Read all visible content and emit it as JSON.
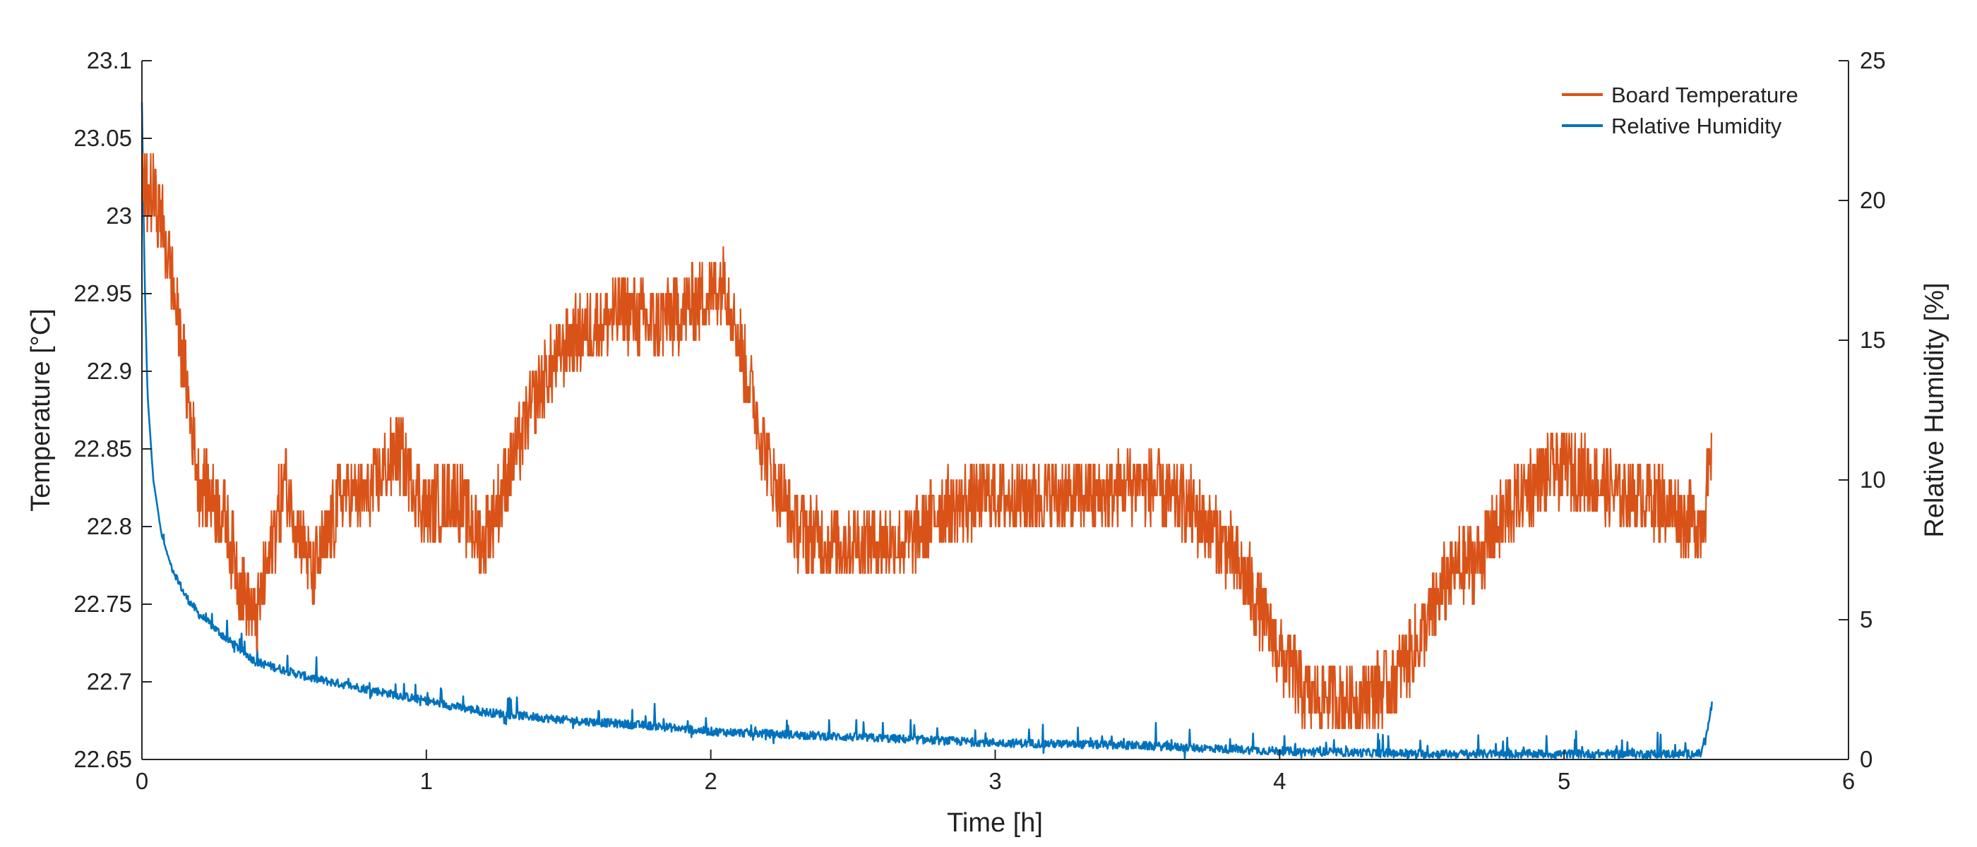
{
  "chart_data": {
    "type": "line",
    "title": "",
    "xlabel": "Time [h]",
    "ylabel_left": "Temperature [°C]",
    "ylabel_right": "Relative Humidity [%]",
    "xlim": [
      0,
      6
    ],
    "ylim_left": [
      22.65,
      23.1
    ],
    "ylim_right": [
      0,
      25
    ],
    "x_ticks": [
      0,
      1,
      2,
      3,
      4,
      5,
      6
    ],
    "x_tick_labels": [
      "0",
      "1",
      "2",
      "3",
      "4",
      "5",
      "6"
    ],
    "y_left_ticks": [
      22.65,
      22.7,
      22.75,
      22.8,
      22.85,
      22.9,
      22.95,
      23.0,
      23.05,
      23.1
    ],
    "y_left_tick_labels": [
      "22.65",
      "22.7",
      "22.75",
      "22.8",
      "22.85",
      "22.9",
      "22.95",
      "23",
      "23.05",
      "23.1"
    ],
    "y_right_ticks": [
      0,
      5,
      10,
      15,
      20,
      25
    ],
    "y_right_tick_labels": [
      "0",
      "5",
      "10",
      "15",
      "20",
      "25"
    ],
    "grid": false,
    "legend_position": "top-right",
    "series": [
      {
        "name": "Board Temperature",
        "axis": "left",
        "color": "#D95319",
        "noise_band": 0.025,
        "x": [
          0,
          0.05,
          0.1,
          0.15,
          0.2,
          0.25,
          0.3,
          0.35,
          0.4,
          0.45,
          0.5,
          0.55,
          0.6,
          0.65,
          0.7,
          0.8,
          0.9,
          1.0,
          1.1,
          1.2,
          1.3,
          1.4,
          1.5,
          1.6,
          1.7,
          1.8,
          1.9,
          2.0,
          2.05,
          2.1,
          2.2,
          2.3,
          2.4,
          2.5,
          2.6,
          2.7,
          2.8,
          3.0,
          3.2,
          3.4,
          3.5,
          3.6,
          3.7,
          3.8,
          3.9,
          4.0,
          4.1,
          4.2,
          4.3,
          4.4,
          4.5,
          4.6,
          4.7,
          4.8,
          4.9,
          5.0,
          5.1,
          5.2,
          5.3,
          5.4,
          5.48,
          5.52
        ],
        "y": [
          23.02,
          23.01,
          22.97,
          22.9,
          22.83,
          22.82,
          22.8,
          22.76,
          22.74,
          22.78,
          22.83,
          22.8,
          22.77,
          22.79,
          22.82,
          22.82,
          22.85,
          22.81,
          22.82,
          22.79,
          22.84,
          22.89,
          22.92,
          22.93,
          22.94,
          22.93,
          22.94,
          22.95,
          22.96,
          22.92,
          22.84,
          22.8,
          22.79,
          22.79,
          22.79,
          22.79,
          22.81,
          22.82,
          22.82,
          22.82,
          22.83,
          22.82,
          22.81,
          22.79,
          22.76,
          22.72,
          22.69,
          22.69,
          22.69,
          22.7,
          22.73,
          22.77,
          22.78,
          22.81,
          22.83,
          22.84,
          22.83,
          22.82,
          22.82,
          22.81,
          22.8,
          22.84
        ]
      },
      {
        "name": "Relative Humidity",
        "axis": "right",
        "color": "#0072BD",
        "noise_band": 0.3,
        "x": [
          0,
          0.005,
          0.01,
          0.02,
          0.04,
          0.07,
          0.1,
          0.15,
          0.2,
          0.3,
          0.4,
          0.6,
          0.8,
          1.0,
          1.2,
          1.5,
          1.8,
          2.0,
          2.5,
          3.0,
          3.5,
          4.0,
          4.5,
          5.0,
          5.48,
          5.5,
          5.52
        ],
        "y": [
          23.5,
          20.0,
          17.0,
          13.0,
          10.0,
          8.0,
          7.0,
          5.9,
          5.2,
          4.3,
          3.5,
          2.9,
          2.5,
          2.1,
          1.7,
          1.4,
          1.2,
          1.0,
          0.8,
          0.6,
          0.5,
          0.3,
          0.2,
          0.2,
          0.2,
          0.8,
          2.0
        ]
      }
    ]
  }
}
